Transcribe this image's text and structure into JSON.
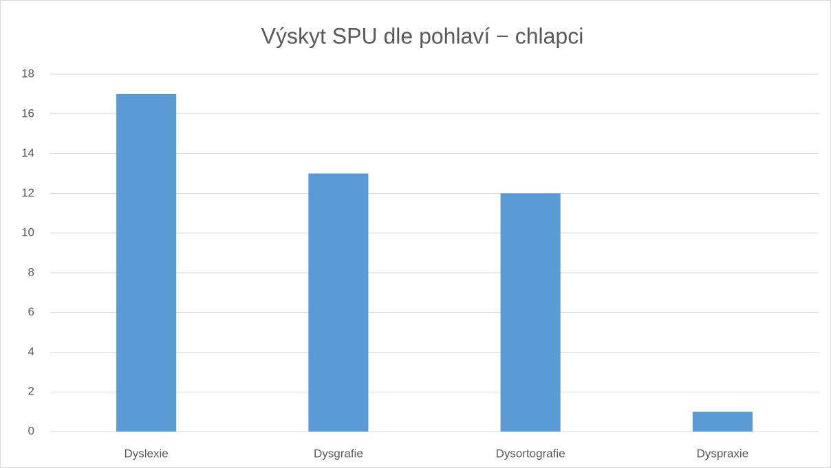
{
  "chart_data": {
    "type": "bar",
    "title": "Výskyt SPU dle pohlaví − chlapci",
    "categories": [
      "Dyslexie",
      "Dysgrafie",
      "Dysortografie",
      "Dyspraxie"
    ],
    "values": [
      17,
      13,
      12,
      1
    ],
    "color": "#5b9bd5",
    "ylim": [
      0,
      18
    ],
    "yticks": [
      0,
      2,
      4,
      6,
      8,
      10,
      12,
      14,
      16,
      18
    ],
    "grid": true
  }
}
